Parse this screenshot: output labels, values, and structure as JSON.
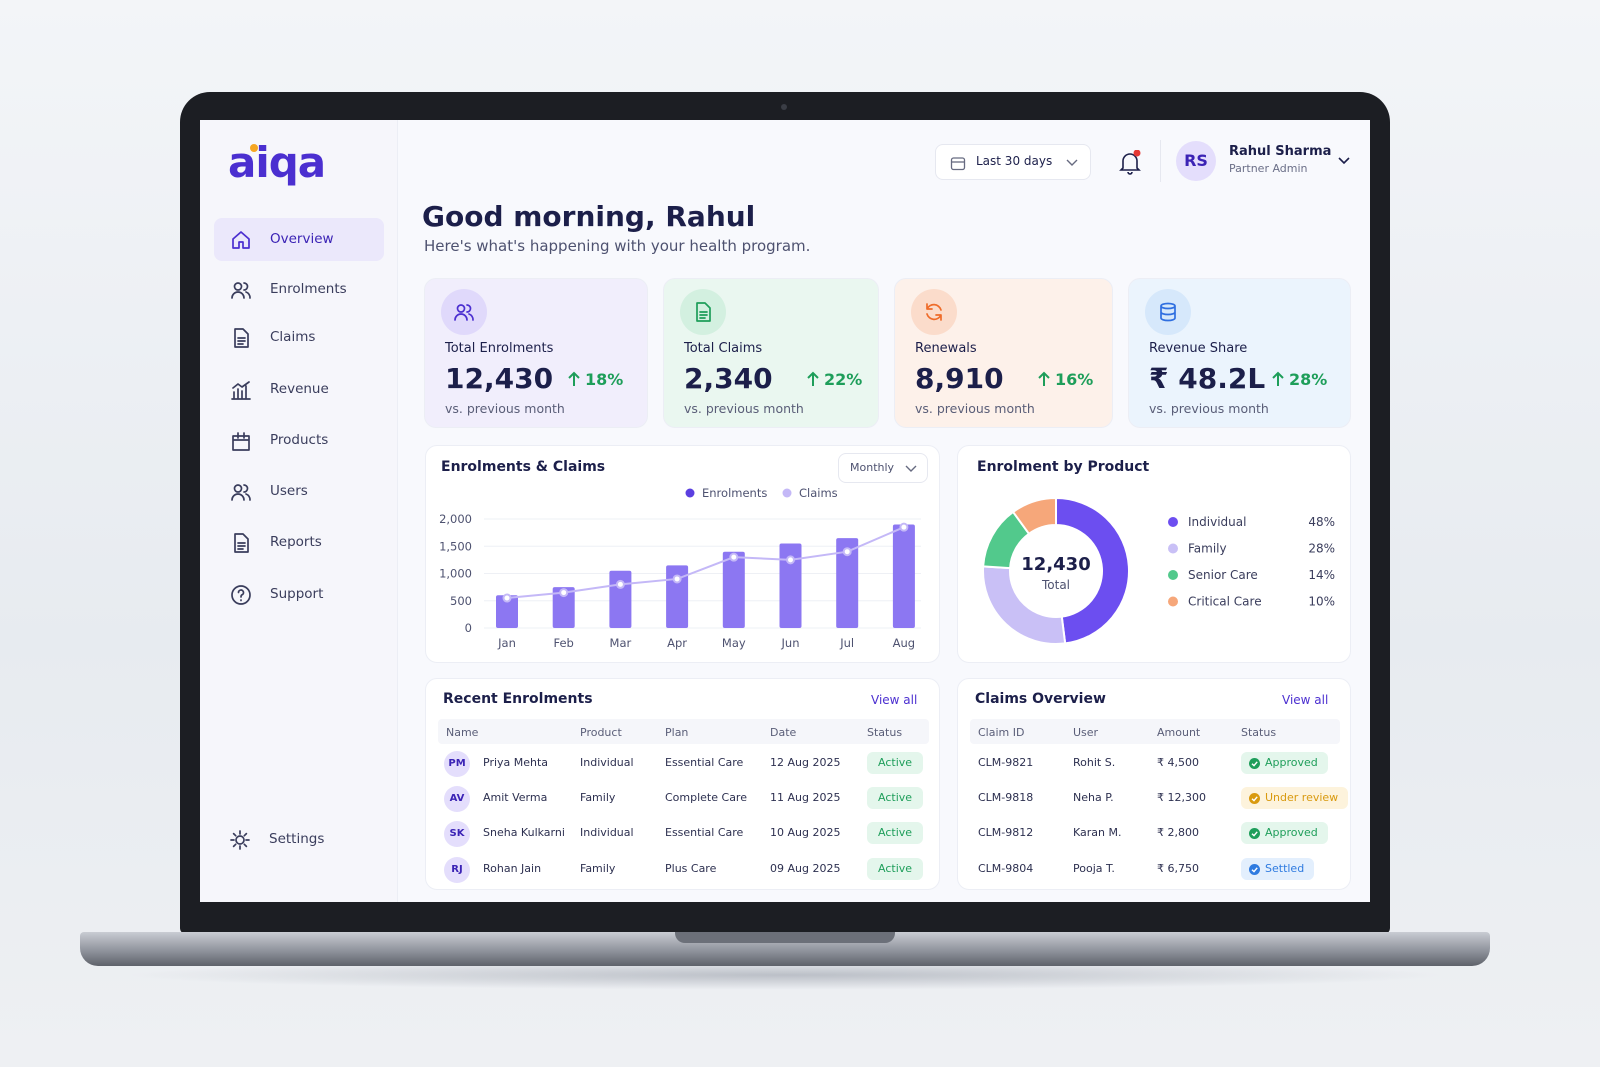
{
  "brand": "aiqa",
  "nav": [
    "Overview",
    "Enrolments",
    "Claims",
    "Revenue",
    "Products",
    "Users",
    "Reports",
    "Support"
  ],
  "settings": "Settings",
  "date_filter": "Last 30 days",
  "user": {
    "initials": "RS",
    "name": "Rahul Sharma",
    "role": "Partner Admin"
  },
  "greeting": {
    "title": "Good morning, Rahul",
    "subtitle": "Here's what's happening with your health program."
  },
  "kpis": [
    {
      "label": "Total Enrolments",
      "value": "12,430",
      "change": "18%",
      "note": "vs. previous month"
    },
    {
      "label": "Total Claims",
      "value": "2,340",
      "change": "22%",
      "note": "vs. previous month"
    },
    {
      "label": "Renewals",
      "value": "8,910",
      "change": "16%",
      "note": "vs. previous month"
    },
    {
      "label": "Revenue Share",
      "value": "₹ 48.2L",
      "change": "28%",
      "note": "vs. previous month"
    }
  ],
  "enrolments_chart": {
    "type": "bar",
    "title": "Enrolments & Claims",
    "period": "Monthly",
    "categories": [
      "Jan",
      "Feb",
      "Mar",
      "Apr",
      "May",
      "Jun",
      "Jul",
      "Aug"
    ],
    "series": [
      {
        "name": "Enrolments",
        "type": "bar",
        "color": "#8c77f2",
        "values": [
          600,
          750,
          1050,
          1150,
          1400,
          1550,
          1650,
          1900
        ]
      },
      {
        "name": "Claims",
        "type": "line",
        "color": "#c4b8f7",
        "values": [
          550,
          650,
          800,
          900,
          1300,
          1250,
          1400,
          1850
        ]
      }
    ],
    "ylim": [
      0,
      2000
    ],
    "yticks": [
      0,
      500,
      {
        "value": 1000,
        "label": "1,000"
      },
      {
        "value": 1500,
        "label": "1,500"
      },
      {
        "value": 2000,
        "label": "2,000"
      }
    ],
    "grid": true
  },
  "product_chart": {
    "type": "pie",
    "title": "Enrolment by Product",
    "center_value": "12,430",
    "center_label": "Total",
    "categories": [
      "Individual",
      "Family",
      "Senior Care",
      "Critical Care"
    ],
    "values": [
      48,
      28,
      14,
      10
    ],
    "value_labels": [
      "48%",
      "28%",
      "14%",
      "10%"
    ],
    "colors": [
      "#6c4ef0",
      "#c9c0f6",
      "#52c98c",
      "#f6a77a"
    ]
  },
  "recent_enrolments": {
    "title": "Recent Enrolments",
    "view_all": "View all",
    "columns": [
      "Name",
      "Product",
      "Plan",
      "Date",
      "Status"
    ],
    "rows": [
      [
        "PM",
        "Priya Mehta",
        "Individual",
        "Essential Care",
        "12 Aug 2025",
        "Active"
      ],
      [
        "AV",
        "Amit Verma",
        "Family",
        "Complete Care",
        "11 Aug 2025",
        "Active"
      ],
      [
        "SK",
        "Sneha Kulkarni",
        "Individual",
        "Essential Care",
        "10 Aug 2025",
        "Active"
      ],
      [
        "RJ",
        "Rohan Jain",
        "Family",
        "Plus Care",
        "09 Aug 2025",
        "Active"
      ]
    ]
  },
  "claims_overview": {
    "title": "Claims Overview",
    "view_all": "View all",
    "columns": [
      "Claim ID",
      "User",
      "Amount",
      "Status"
    ],
    "rows": [
      [
        "CLM-9821",
        "Rohit S.",
        "₹ 4,500",
        "Approved"
      ],
      [
        "CLM-9818",
        "Neha P.",
        "₹ 12,300",
        "Under review"
      ],
      [
        "CLM-9812",
        "Karan M.",
        "₹ 2,800",
        "Approved"
      ],
      [
        "CLM-9804",
        "Pooja T.",
        "₹ 6,750",
        "Settled"
      ]
    ]
  }
}
